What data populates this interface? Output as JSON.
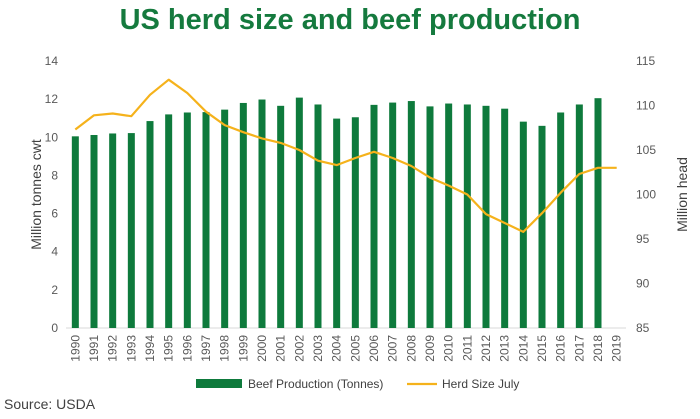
{
  "title": "US herd size and beef production",
  "source": "Source: USDA",
  "colors": {
    "title": "#157a3e",
    "bars": "#0e7a3c",
    "line": "#f5b21b",
    "grid": "#d9d9d9"
  },
  "chart_data": {
    "type": "bar",
    "title": "US herd size and beef production",
    "categories": [
      "1990",
      "1991",
      "1992",
      "1993",
      "1994",
      "1995",
      "1996",
      "1997",
      "1998",
      "1999",
      "2000",
      "2001",
      "2002",
      "2003",
      "2004",
      "2005",
      "2006",
      "2007",
      "2008",
      "2009",
      "2010",
      "2011",
      "2012",
      "2013",
      "2014",
      "2015",
      "2016",
      "2017",
      "2018",
      "2019"
    ],
    "series": [
      {
        "name": "Beef Production (Tonnes)",
        "type": "bar",
        "axis": "left",
        "values": [
          10.05,
          10.12,
          10.2,
          10.22,
          10.85,
          11.2,
          11.3,
          11.32,
          11.45,
          11.8,
          11.98,
          11.65,
          12.08,
          11.72,
          10.98,
          11.05,
          11.7,
          11.82,
          11.9,
          11.62,
          11.77,
          11.72,
          11.65,
          11.5,
          10.82,
          10.6,
          11.3,
          11.72,
          12.05,
          null
        ]
      },
      {
        "name": "Herd Size July",
        "type": "line",
        "axis": "right",
        "values": [
          107.3,
          108.9,
          109.1,
          108.8,
          111.2,
          112.9,
          111.4,
          109.3,
          107.8,
          107.0,
          106.3,
          105.8,
          105.0,
          103.8,
          103.3,
          104.1,
          104.8,
          104.1,
          103.2,
          101.9,
          101.0,
          100.0,
          97.8,
          96.8,
          95.8,
          97.9,
          100.2,
          102.3,
          103.0,
          103.0
        ]
      }
    ],
    "ylabel": "Million tonnes cwt",
    "y2label": "Million head",
    "ylim": [
      0,
      14
    ],
    "y2lim": [
      85,
      115
    ],
    "yticks": [
      0,
      2,
      4,
      6,
      8,
      10,
      12,
      14
    ],
    "y2ticks": [
      85,
      90,
      95,
      100,
      105,
      110,
      115
    ],
    "grid": false,
    "legend": "bottom"
  }
}
